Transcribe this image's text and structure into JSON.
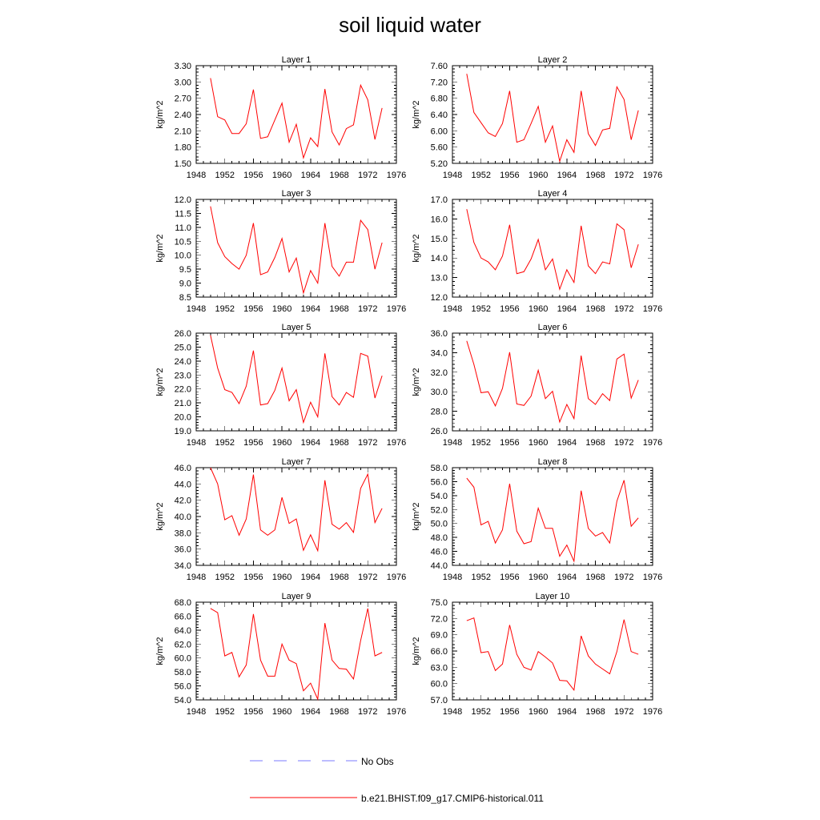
{
  "title": "soil liquid water",
  "chart_data": [
    {
      "type": "line",
      "title": "Layer 1",
      "ylabel": "kg/m^2",
      "xlim": [
        1948,
        1976
      ],
      "ylim": [
        1.5,
        3.3
      ],
      "xticks": [
        1948,
        1952,
        1956,
        1960,
        1964,
        1968,
        1972,
        1976
      ],
      "yticks": [
        "1.50",
        "1.80",
        "2.10",
        "2.40",
        "2.70",
        "3.00",
        "3.30"
      ],
      "x": [
        1950,
        1951,
        1952,
        1953,
        1954,
        1955,
        1956,
        1957,
        1958,
        1959,
        1960,
        1961,
        1962,
        1963,
        1964,
        1965,
        1966,
        1967,
        1968,
        1969,
        1970,
        1971,
        1972,
        1973,
        1974
      ],
      "series": [
        {
          "name": "b.e21.BHIST.f09_g17.CMIP6-historical.011",
          "values": [
            3.07,
            2.36,
            2.3,
            2.05,
            2.05,
            2.23,
            2.86,
            1.96,
            1.99,
            2.3,
            2.61,
            1.89,
            2.22,
            1.6,
            1.97,
            1.81,
            2.87,
            2.08,
            1.84,
            2.14,
            2.21,
            2.94,
            2.67,
            1.94,
            2.52
          ]
        }
      ]
    },
    {
      "type": "line",
      "title": "Layer 2",
      "ylabel": "kg/m^2",
      "xlim": [
        1948,
        1976
      ],
      "ylim": [
        5.2,
        7.6
      ],
      "xticks": [
        1948,
        1952,
        1956,
        1960,
        1964,
        1968,
        1972,
        1976
      ],
      "yticks": [
        "5.20",
        "5.60",
        "6.00",
        "6.40",
        "6.80",
        "7.20",
        "7.60"
      ],
      "x": [
        1950,
        1951,
        1952,
        1953,
        1954,
        1955,
        1956,
        1957,
        1958,
        1959,
        1960,
        1961,
        1962,
        1963,
        1964,
        1965,
        1966,
        1967,
        1968,
        1969,
        1970,
        1971,
        1972,
        1973,
        1974
      ],
      "series": [
        {
          "name": "b.e21.BHIST.f09_g17.CMIP6-historical.011",
          "values": [
            7.4,
            6.45,
            6.2,
            5.95,
            5.86,
            6.18,
            6.98,
            5.72,
            5.78,
            6.18,
            6.6,
            5.72,
            6.12,
            5.25,
            5.78,
            5.47,
            6.98,
            5.93,
            5.64,
            6.02,
            6.06,
            7.08,
            6.77,
            5.78,
            6.5
          ]
        }
      ]
    },
    {
      "type": "line",
      "title": "Layer 3",
      "ylabel": "kg/m^2",
      "xlim": [
        1948,
        1976
      ],
      "ylim": [
        8.5,
        12.0
      ],
      "xticks": [
        1948,
        1952,
        1956,
        1960,
        1964,
        1968,
        1972,
        1976
      ],
      "yticks": [
        "8.5",
        "9.0",
        "9.5",
        "10.0",
        "10.5",
        "11.0",
        "11.5",
        "12.0"
      ],
      "x": [
        1950,
        1951,
        1952,
        1953,
        1954,
        1955,
        1956,
        1957,
        1958,
        1959,
        1960,
        1961,
        1962,
        1963,
        1964,
        1965,
        1966,
        1967,
        1968,
        1969,
        1970,
        1971,
        1972,
        1973,
        1974
      ],
      "series": [
        {
          "name": "b.e21.BHIST.f09_g17.CMIP6-historical.011",
          "values": [
            11.75,
            10.45,
            9.95,
            9.7,
            9.5,
            10.0,
            11.15,
            9.3,
            9.4,
            9.92,
            10.6,
            9.4,
            9.9,
            8.65,
            9.45,
            9.0,
            11.15,
            9.6,
            9.25,
            9.75,
            9.75,
            11.25,
            10.92,
            9.5,
            10.45
          ]
        }
      ]
    },
    {
      "type": "line",
      "title": "Layer 4",
      "ylabel": "kg/m^2",
      "xlim": [
        1948,
        1976
      ],
      "ylim": [
        12.0,
        17.0
      ],
      "xticks": [
        1948,
        1952,
        1956,
        1960,
        1964,
        1968,
        1972,
        1976
      ],
      "yticks": [
        "12.0",
        "13.0",
        "14.0",
        "15.0",
        "16.0",
        "17.0"
      ],
      "x": [
        1950,
        1951,
        1952,
        1953,
        1954,
        1955,
        1956,
        1957,
        1958,
        1959,
        1960,
        1961,
        1962,
        1963,
        1964,
        1965,
        1966,
        1967,
        1968,
        1969,
        1970,
        1971,
        1972,
        1973,
        1974
      ],
      "series": [
        {
          "name": "b.e21.BHIST.f09_g17.CMIP6-historical.011",
          "values": [
            16.5,
            14.8,
            14.0,
            13.8,
            13.4,
            14.1,
            15.7,
            13.2,
            13.3,
            13.95,
            14.95,
            13.4,
            13.95,
            12.4,
            13.4,
            12.75,
            15.65,
            13.6,
            13.2,
            13.8,
            13.7,
            15.75,
            15.45,
            13.5,
            14.7
          ]
        }
      ]
    },
    {
      "type": "line",
      "title": "Layer 5",
      "ylabel": "kg/m^2",
      "xlim": [
        1948,
        1976
      ],
      "ylim": [
        19.0,
        26.0
      ],
      "xticks": [
        1948,
        1952,
        1956,
        1960,
        1964,
        1968,
        1972,
        1976
      ],
      "yticks": [
        "19.0",
        "20.0",
        "21.0",
        "22.0",
        "23.0",
        "24.0",
        "25.0",
        "26.0"
      ],
      "x": [
        1950,
        1951,
        1952,
        1953,
        1954,
        1955,
        1956,
        1957,
        1958,
        1959,
        1960,
        1961,
        1962,
        1963,
        1964,
        1965,
        1966,
        1967,
        1968,
        1969,
        1970,
        1971,
        1972,
        1973,
        1974
      ],
      "series": [
        {
          "name": "b.e21.BHIST.f09_g17.CMIP6-historical.011",
          "values": [
            25.85,
            23.5,
            21.95,
            21.75,
            20.95,
            22.2,
            24.75,
            20.85,
            20.95,
            21.9,
            23.5,
            21.15,
            21.95,
            19.6,
            21.05,
            20.0,
            24.55,
            21.45,
            20.85,
            21.75,
            21.4,
            24.55,
            24.35,
            21.35,
            22.95
          ]
        }
      ]
    },
    {
      "type": "line",
      "title": "Layer 6",
      "ylabel": "kg/m^2",
      "xlim": [
        1948,
        1976
      ],
      "ylim": [
        26.0,
        36.0
      ],
      "xticks": [
        1948,
        1952,
        1956,
        1960,
        1964,
        1968,
        1972,
        1976
      ],
      "yticks": [
        "26.0",
        "28.0",
        "30.0",
        "32.0",
        "34.0",
        "36.0"
      ],
      "x": [
        1950,
        1951,
        1952,
        1953,
        1954,
        1955,
        1956,
        1957,
        1958,
        1959,
        1960,
        1961,
        1962,
        1963,
        1964,
        1965,
        1966,
        1967,
        1968,
        1969,
        1970,
        1971,
        1972,
        1973,
        1974
      ],
      "series": [
        {
          "name": "b.e21.BHIST.f09_g17.CMIP6-historical.011",
          "values": [
            35.2,
            32.8,
            29.9,
            30.0,
            28.55,
            30.35,
            34.05,
            28.75,
            28.6,
            29.55,
            32.2,
            29.3,
            30.05,
            26.9,
            28.7,
            27.25,
            33.7,
            29.3,
            28.7,
            29.8,
            29.1,
            33.35,
            33.85,
            29.35,
            31.2
          ]
        }
      ]
    },
    {
      "type": "line",
      "title": "Layer 7",
      "ylabel": "kg/m^2",
      "xlim": [
        1948,
        1976
      ],
      "ylim": [
        34.0,
        46.0
      ],
      "xticks": [
        1948,
        1952,
        1956,
        1960,
        1964,
        1968,
        1972,
        1976
      ],
      "yticks": [
        "34.0",
        "36.0",
        "38.0",
        "40.0",
        "42.0",
        "44.0",
        "46.0"
      ],
      "x": [
        1950,
        1951,
        1952,
        1953,
        1954,
        1955,
        1956,
        1957,
        1958,
        1959,
        1960,
        1961,
        1962,
        1963,
        1964,
        1965,
        1966,
        1967,
        1968,
        1969,
        1970,
        1971,
        1972,
        1973,
        1974
      ],
      "series": [
        {
          "name": "b.e21.BHIST.f09_g17.CMIP6-historical.011",
          "values": [
            46.0,
            44.0,
            39.6,
            40.1,
            37.7,
            39.7,
            45.15,
            38.35,
            37.7,
            38.35,
            42.35,
            39.15,
            39.7,
            35.85,
            37.75,
            35.8,
            44.45,
            39.05,
            38.45,
            39.25,
            38.05,
            43.45,
            45.2,
            39.25,
            41.0
          ]
        }
      ]
    },
    {
      "type": "line",
      "title": "Layer 8",
      "ylabel": "kg/m^2",
      "xlim": [
        1948,
        1976
      ],
      "ylim": [
        44.0,
        58.0
      ],
      "xticks": [
        1948,
        1952,
        1956,
        1960,
        1964,
        1968,
        1972,
        1976
      ],
      "yticks": [
        "44.0",
        "46.0",
        "48.0",
        "50.0",
        "52.0",
        "54.0",
        "56.0",
        "58.0"
      ],
      "x": [
        1950,
        1951,
        1952,
        1953,
        1954,
        1955,
        1956,
        1957,
        1958,
        1959,
        1960,
        1961,
        1962,
        1963,
        1964,
        1965,
        1966,
        1967,
        1968,
        1969,
        1970,
        1971,
        1972,
        1973,
        1974
      ],
      "series": [
        {
          "name": "b.e21.BHIST.f09_g17.CMIP6-historical.011",
          "values": [
            56.5,
            55.2,
            49.8,
            50.3,
            47.2,
            49.1,
            55.7,
            48.9,
            47.1,
            47.4,
            52.2,
            49.3,
            49.3,
            45.3,
            46.9,
            44.6,
            54.7,
            49.3,
            48.2,
            48.7,
            47.2,
            53.2,
            56.2,
            49.6,
            50.8
          ]
        }
      ]
    },
    {
      "type": "line",
      "title": "Layer 9",
      "ylabel": "kg/m^2",
      "xlim": [
        1948,
        1976
      ],
      "ylim": [
        54.0,
        68.0
      ],
      "xticks": [
        1948,
        1952,
        1956,
        1960,
        1964,
        1968,
        1972,
        1976
      ],
      "yticks": [
        "54.0",
        "56.0",
        "58.0",
        "60.0",
        "62.0",
        "64.0",
        "66.0",
        "68.0"
      ],
      "x": [
        1950,
        1951,
        1952,
        1953,
        1954,
        1955,
        1956,
        1957,
        1958,
        1959,
        1960,
        1961,
        1962,
        1963,
        1964,
        1965,
        1966,
        1967,
        1968,
        1969,
        1970,
        1971,
        1972,
        1973,
        1974
      ],
      "series": [
        {
          "name": "b.e21.BHIST.f09_g17.CMIP6-historical.011",
          "values": [
            67.1,
            66.5,
            60.3,
            60.8,
            57.3,
            59.0,
            66.3,
            59.7,
            57.4,
            57.4,
            62.0,
            59.7,
            59.2,
            55.3,
            56.4,
            54.1,
            65.0,
            59.7,
            58.5,
            58.4,
            57.0,
            62.5,
            67.1,
            60.3,
            60.8
          ]
        }
      ]
    },
    {
      "type": "line",
      "title": "Layer 10",
      "ylabel": "kg/m^2",
      "xlim": [
        1948,
        1976
      ],
      "ylim": [
        57.0,
        75.0
      ],
      "xticks": [
        1948,
        1952,
        1956,
        1960,
        1964,
        1968,
        1972,
        1976
      ],
      "yticks": [
        "57.0",
        "60.0",
        "63.0",
        "66.0",
        "69.0",
        "72.0",
        "75.0"
      ],
      "x": [
        1950,
        1951,
        1952,
        1953,
        1954,
        1955,
        1956,
        1957,
        1958,
        1959,
        1960,
        1961,
        1962,
        1963,
        1964,
        1965,
        1966,
        1967,
        1968,
        1969,
        1970,
        1971,
        1972,
        1973,
        1974
      ],
      "series": [
        {
          "name": "b.e21.BHIST.f09_g17.CMIP6-historical.011",
          "values": [
            71.6,
            72.1,
            65.7,
            65.9,
            62.4,
            63.6,
            70.8,
            65.4,
            63.0,
            62.5,
            65.9,
            64.9,
            63.8,
            60.6,
            60.5,
            58.8,
            68.8,
            65.1,
            63.6,
            62.7,
            61.8,
            65.9,
            71.8,
            65.9,
            65.4
          ]
        }
      ]
    }
  ],
  "legend": {
    "entries": [
      {
        "label": "No Obs",
        "color": "#7b7bff",
        "dash": "dashed"
      },
      {
        "label": "b.e21.BHIST.f09_g17.CMIP6-historical.011",
        "color": "#ff0000",
        "dash": "solid"
      }
    ]
  }
}
